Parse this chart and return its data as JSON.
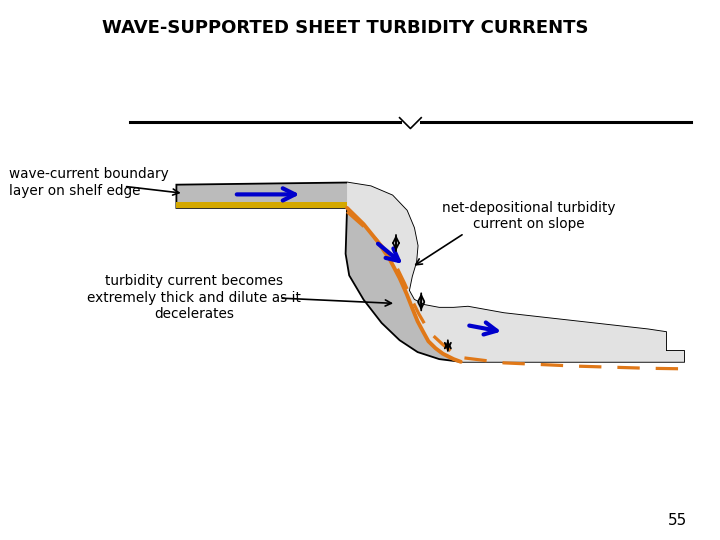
{
  "title": "WAVE-SUPPORTED SHEET TURBIDITY CURRENTS",
  "title_fontsize": 13,
  "page_number": "55",
  "background_color": "#ffffff",
  "label_wave_current": "wave-current boundary\nlayer on shelf edge",
  "label_turbidity": "turbidity current becomes\nextremely thick and dilute as it\ndecelerates",
  "label_net_dep": "net-depositional turbidity\ncurrent on slope",
  "water_line_color": "#000000",
  "shelf_fill_color": "#bbbbbb",
  "basin_fill_color": "#d8d8d8",
  "inner_fill_color": "#e2e2e2",
  "orange_line_color": "#e07818",
  "dashed_orange_color": "#e07818",
  "yellow_bottom_color": "#d4a800",
  "blue_arrow_color": "#0000cc",
  "black_color": "#000000"
}
